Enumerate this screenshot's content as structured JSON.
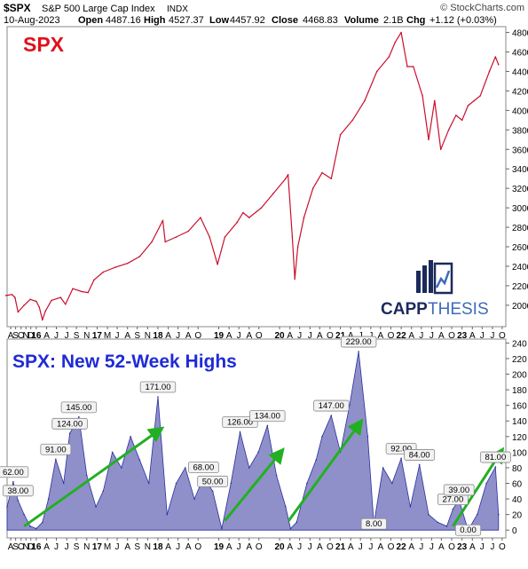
{
  "header": {
    "symbol": "$SPX",
    "name": "S&P 500 Large Cap Index",
    "exchange": "INDX",
    "credit": "© StockCharts.com",
    "date": "10-Aug-2023",
    "open_label": "Open",
    "open": "4487.16",
    "high_label": "High",
    "high": "4527.37",
    "low_label": "Low",
    "low": "4457.92",
    "close_label": "Close",
    "close": "4468.83",
    "volume_label": "Volume",
    "volume": "2.1B",
    "chg_label": "Chg",
    "chg": "+1.12 (+0.03%)"
  },
  "logo": {
    "text_a": "CAPP",
    "text_b": "THESIS"
  },
  "colors": {
    "price_line": "#c8102e",
    "highs_fill": "#7b7dc0",
    "highs_line": "#2b2f9e",
    "arrow": "#22b022",
    "spx_title": "#e0101a",
    "highs_title": "#1f2bd6",
    "logo_dark": "#1b2a5b",
    "logo_accent": "#3e6ab8"
  },
  "chart_data": [
    {
      "type": "line",
      "title": "SPX",
      "series": [
        {
          "name": "",
          "x": [
            2015.5,
            2015.6,
            2015.65,
            2015.7,
            2015.8,
            2015.9,
            2016.0,
            2016.05,
            2016.1,
            2016.15,
            2016.25,
            2016.4,
            2016.48,
            2016.6,
            2016.75,
            2016.85,
            2016.95,
            2017.1,
            2017.3,
            2017.5,
            2017.7,
            2017.9,
            2018.08,
            2018.12,
            2018.3,
            2018.5,
            2018.7,
            2018.85,
            2018.98,
            2019.1,
            2019.3,
            2019.4,
            2019.5,
            2019.7,
            2019.9,
            2020.1,
            2020.14,
            2020.21,
            2020.25,
            2020.3,
            2020.4,
            2020.55,
            2020.7,
            2020.85,
            2021.0,
            2021.2,
            2021.4,
            2021.6,
            2021.8,
            2021.9,
            2022.0,
            2022.1,
            2022.2,
            2022.35,
            2022.45,
            2022.55,
            2022.65,
            2022.78,
            2022.9,
            2023.0,
            2023.1,
            2023.2,
            2023.3,
            2023.45,
            2023.55,
            2023.6
          ],
          "y": [
            2100,
            2110,
            2080,
            1930,
            2000,
            2060,
            2040,
            1980,
            1850,
            1940,
            2050,
            2080,
            2010,
            2170,
            2140,
            2130,
            2260,
            2340,
            2390,
            2430,
            2500,
            2650,
            2870,
            2650,
            2700,
            2760,
            2900,
            2700,
            2420,
            2700,
            2850,
            2950,
            2900,
            3000,
            3150,
            3300,
            3340,
            2700,
            2270,
            2600,
            2900,
            3200,
            3360,
            3300,
            3750,
            3900,
            4100,
            4400,
            4550,
            4700,
            4800,
            4450,
            4450,
            4150,
            3700,
            4100,
            3600,
            3800,
            3950,
            3900,
            4050,
            4100,
            4150,
            4400,
            4550,
            4470
          ]
        }
      ],
      "xticks": [
        {
          "x": 2015.58,
          "label": "A"
        },
        {
          "x": 2015.66,
          "label": "S"
        },
        {
          "x": 2015.75,
          "label": "O"
        },
        {
          "x": 2015.83,
          "label": "N"
        },
        {
          "x": 2015.91,
          "label": "D"
        },
        {
          "x": 2016.0,
          "label": "16"
        },
        {
          "x": 2016.17,
          "label": "A"
        },
        {
          "x": 2016.33,
          "label": "J"
        },
        {
          "x": 2016.5,
          "label": "J"
        },
        {
          "x": 2016.66,
          "label": "S"
        },
        {
          "x": 2016.83,
          "label": "N"
        },
        {
          "x": 2017.0,
          "label": "17"
        },
        {
          "x": 2017.17,
          "label": "M"
        },
        {
          "x": 2017.33,
          "label": "J"
        },
        {
          "x": 2017.5,
          "label": "A"
        },
        {
          "x": 2017.66,
          "label": "S"
        },
        {
          "x": 2017.83,
          "label": "N"
        },
        {
          "x": 2018.0,
          "label": "18"
        },
        {
          "x": 2018.17,
          "label": "A"
        },
        {
          "x": 2018.33,
          "label": "J"
        },
        {
          "x": 2018.5,
          "label": "A"
        },
        {
          "x": 2018.66,
          "label": "O"
        },
        {
          "x": 2019.0,
          "label": "19"
        },
        {
          "x": 2019.17,
          "label": "A"
        },
        {
          "x": 2019.33,
          "label": "J"
        },
        {
          "x": 2019.5,
          "label": "A"
        },
        {
          "x": 2019.66,
          "label": "O"
        },
        {
          "x": 2020.0,
          "label": "20"
        },
        {
          "x": 2020.17,
          "label": "A"
        },
        {
          "x": 2020.33,
          "label": "J"
        },
        {
          "x": 2020.5,
          "label": "J"
        },
        {
          "x": 2020.66,
          "label": "A"
        },
        {
          "x": 2020.83,
          "label": "O"
        },
        {
          "x": 2021.0,
          "label": "21"
        },
        {
          "x": 2021.17,
          "label": "A"
        },
        {
          "x": 2021.33,
          "label": "J"
        },
        {
          "x": 2021.5,
          "label": "J"
        },
        {
          "x": 2021.66,
          "label": "A"
        },
        {
          "x": 2021.83,
          "label": "O"
        },
        {
          "x": 2022.0,
          "label": "22"
        },
        {
          "x": 2022.17,
          "label": "A"
        },
        {
          "x": 2022.33,
          "label": "J"
        },
        {
          "x": 2022.5,
          "label": "J"
        },
        {
          "x": 2022.66,
          "label": "A"
        },
        {
          "x": 2022.83,
          "label": "O"
        },
        {
          "x": 2023.0,
          "label": "23"
        },
        {
          "x": 2023.17,
          "label": "A"
        },
        {
          "x": 2023.33,
          "label": "J"
        },
        {
          "x": 2023.5,
          "label": "J"
        },
        {
          "x": 2023.66,
          "label": "O"
        }
      ],
      "yticks": [
        2000,
        2200,
        2400,
        2600,
        2800,
        3000,
        3200,
        3400,
        3600,
        3800,
        4000,
        4200,
        4400,
        4600,
        4800
      ],
      "xlim": [
        2015.52,
        2023.72
      ],
      "ylim": [
        1780,
        4860
      ],
      "grid": false
    },
    {
      "type": "area",
      "title": "SPX: New 52-Week Highs",
      "series": [
        {
          "name": "",
          "x": [
            2015.52,
            2015.62,
            2015.7,
            2015.8,
            2015.9,
            2016.0,
            2016.1,
            2016.2,
            2016.32,
            2016.45,
            2016.55,
            2016.7,
            2016.83,
            2016.98,
            2017.1,
            2017.25,
            2017.4,
            2017.55,
            2017.7,
            2017.85,
            2018.0,
            2018.15,
            2018.3,
            2018.45,
            2018.6,
            2018.75,
            2018.9,
            2019.05,
            2019.2,
            2019.35,
            2019.5,
            2019.65,
            2019.8,
            2019.95,
            2020.1,
            2020.18,
            2020.28,
            2020.45,
            2020.6,
            2020.7,
            2020.85,
            2021.0,
            2021.15,
            2021.3,
            2021.45,
            2021.55,
            2021.7,
            2021.85,
            2022.0,
            2022.15,
            2022.3,
            2022.45,
            2022.6,
            2022.75,
            2022.85,
            2022.95,
            2023.1,
            2023.25,
            2023.4,
            2023.55,
            2023.6
          ],
          "y": [
            30,
            62,
            38,
            20,
            5,
            2,
            10,
            40,
            91,
            60,
            124,
            145,
            70,
            30,
            50,
            100,
            80,
            120,
            90,
            60,
            171,
            20,
            60,
            80,
            40,
            68,
            50,
            2,
            60,
            126,
            80,
            100,
            134,
            70,
            30,
            2,
            10,
            60,
            90,
            120,
            147,
            100,
            160,
            229,
            120,
            8,
            80,
            60,
            92,
            30,
            84,
            20,
            10,
            5,
            27,
            39,
            0,
            20,
            60,
            81,
            20
          ]
        }
      ],
      "annotations": [
        {
          "x": 2015.62,
          "y": 62,
          "label": "62.00"
        },
        {
          "x": 2015.7,
          "y": 38,
          "label": "38.00"
        },
        {
          "x": 2016.32,
          "y": 91,
          "label": "91.00"
        },
        {
          "x": 2016.55,
          "y": 124,
          "label": "124.00"
        },
        {
          "x": 2016.7,
          "y": 145,
          "label": "145.00"
        },
        {
          "x": 2018.0,
          "y": 171,
          "label": "171.00"
        },
        {
          "x": 2018.75,
          "y": 68,
          "label": "68.00"
        },
        {
          "x": 2018.9,
          "y": 50,
          "label": "50.00"
        },
        {
          "x": 2019.35,
          "y": 126,
          "label": "126.00"
        },
        {
          "x": 2019.8,
          "y": 134,
          "label": "134.00"
        },
        {
          "x": 2020.85,
          "y": 147,
          "label": "147.00"
        },
        {
          "x": 2021.3,
          "y": 229,
          "label": "229.00"
        },
        {
          "x": 2021.55,
          "y": 8,
          "label": "8.00"
        },
        {
          "x": 2022.0,
          "y": 92,
          "label": "92.00"
        },
        {
          "x": 2022.3,
          "y": 84,
          "label": "84.00"
        },
        {
          "x": 2022.85,
          "y": 27,
          "label": "27.00"
        },
        {
          "x": 2022.95,
          "y": 39,
          "label": "39.00"
        },
        {
          "x": 2023.55,
          "y": 81,
          "label": "81.00"
        },
        {
          "x": 2023.1,
          "y": 0,
          "label": "0.00"
        }
      ],
      "trend_arrows": [
        {
          "x1": 2015.8,
          "y1": 5,
          "x2": 2018.0,
          "y2": 127
        },
        {
          "x1": 2019.1,
          "y1": 12,
          "x2": 2020.0,
          "y2": 98
        },
        {
          "x1": 2020.15,
          "y1": 12,
          "x2": 2021.3,
          "y2": 135
        },
        {
          "x1": 2022.85,
          "y1": 5,
          "x2": 2023.62,
          "y2": 98
        }
      ],
      "xticks": [
        {
          "x": 2015.58,
          "label": "A"
        },
        {
          "x": 2015.66,
          "label": "S"
        },
        {
          "x": 2015.75,
          "label": "O"
        },
        {
          "x": 2015.83,
          "label": "N"
        },
        {
          "x": 2015.91,
          "label": "D"
        },
        {
          "x": 2016.0,
          "label": "16"
        },
        {
          "x": 2016.17,
          "label": "A"
        },
        {
          "x": 2016.33,
          "label": "J"
        },
        {
          "x": 2016.5,
          "label": "J"
        },
        {
          "x": 2016.66,
          "label": "S"
        },
        {
          "x": 2016.83,
          "label": "N"
        },
        {
          "x": 2017.0,
          "label": "17"
        },
        {
          "x": 2017.17,
          "label": "M"
        },
        {
          "x": 2017.33,
          "label": "J"
        },
        {
          "x": 2017.5,
          "label": "A"
        },
        {
          "x": 2017.66,
          "label": "S"
        },
        {
          "x": 2017.83,
          "label": "N"
        },
        {
          "x": 2018.0,
          "label": "18"
        },
        {
          "x": 2018.17,
          "label": "A"
        },
        {
          "x": 2018.33,
          "label": "J"
        },
        {
          "x": 2018.5,
          "label": "A"
        },
        {
          "x": 2018.66,
          "label": "O"
        },
        {
          "x": 2019.0,
          "label": "19"
        },
        {
          "x": 2019.17,
          "label": "A"
        },
        {
          "x": 2019.33,
          "label": "J"
        },
        {
          "x": 2019.5,
          "label": "A"
        },
        {
          "x": 2019.66,
          "label": "O"
        },
        {
          "x": 2020.0,
          "label": "20"
        },
        {
          "x": 2020.17,
          "label": "A"
        },
        {
          "x": 2020.33,
          "label": "J"
        },
        {
          "x": 2020.5,
          "label": "J"
        },
        {
          "x": 2020.66,
          "label": "A"
        },
        {
          "x": 2020.83,
          "label": "O"
        },
        {
          "x": 2021.0,
          "label": "21"
        },
        {
          "x": 2021.17,
          "label": "A"
        },
        {
          "x": 2021.33,
          "label": "J"
        },
        {
          "x": 2021.5,
          "label": "J"
        },
        {
          "x": 2021.66,
          "label": "A"
        },
        {
          "x": 2021.83,
          "label": "O"
        },
        {
          "x": 2022.0,
          "label": "22"
        },
        {
          "x": 2022.17,
          "label": "A"
        },
        {
          "x": 2022.33,
          "label": "J"
        },
        {
          "x": 2022.5,
          "label": "J"
        },
        {
          "x": 2022.66,
          "label": "A"
        },
        {
          "x": 2022.83,
          "label": "O"
        },
        {
          "x": 2023.0,
          "label": "23"
        },
        {
          "x": 2023.17,
          "label": "A"
        },
        {
          "x": 2023.33,
          "label": "J"
        },
        {
          "x": 2023.5,
          "label": "J"
        },
        {
          "x": 2023.66,
          "label": "O"
        }
      ],
      "yticks": [
        0,
        20,
        40,
        60,
        80,
        100,
        120,
        140,
        160,
        180,
        200,
        220,
        240
      ],
      "xlim": [
        2015.52,
        2023.72
      ],
      "ylim": [
        -10,
        245
      ],
      "grid": false
    }
  ]
}
